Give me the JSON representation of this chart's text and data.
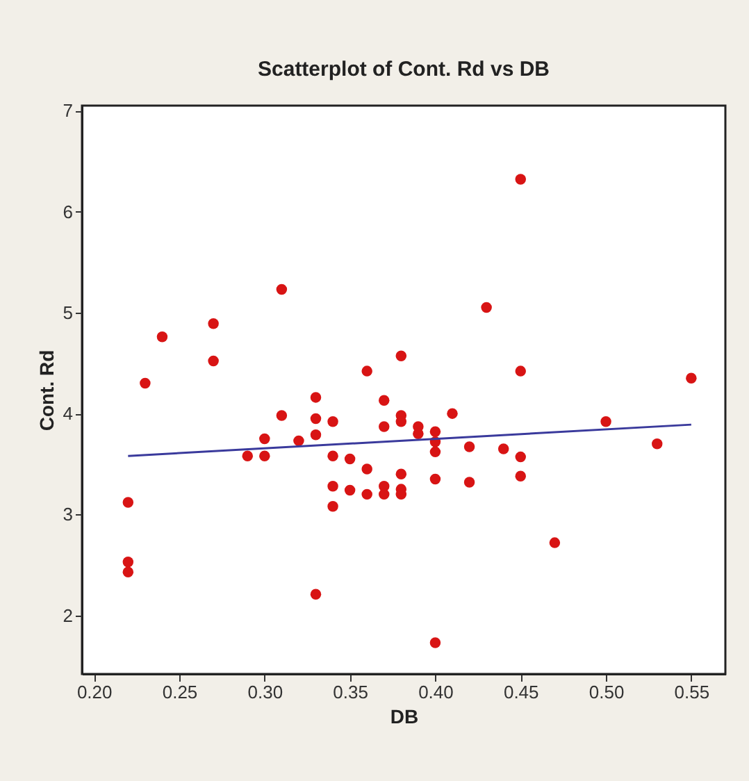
{
  "chart_data": {
    "type": "scatter",
    "title": "Scatterplot of Cont. Rd vs DB",
    "xlabel": "DB",
    "ylabel": "Cont. Rd",
    "marker": "circle",
    "grid": false,
    "xlim": [
      0.193,
      0.57
    ],
    "ylim": [
      1.42,
      7.05
    ],
    "xticks": [
      {
        "value": 0.2,
        "label": "0.20"
      },
      {
        "value": 0.25,
        "label": "0.25"
      },
      {
        "value": 0.3,
        "label": "0.30"
      },
      {
        "value": 0.35,
        "label": "0.35"
      },
      {
        "value": 0.4,
        "label": "0.40"
      },
      {
        "value": 0.45,
        "label": "0.45"
      },
      {
        "value": 0.5,
        "label": "0.50"
      },
      {
        "value": 0.55,
        "label": "0.55"
      }
    ],
    "yticks": [
      2,
      3,
      4,
      5,
      6,
      7
    ],
    "series": [
      {
        "color": "#d81414",
        "x": [
          0.22,
          0.22,
          0.22,
          0.23,
          0.24,
          0.27,
          0.27,
          0.29,
          0.3,
          0.3,
          0.31,
          0.31,
          0.32,
          0.33,
          0.33,
          0.33,
          0.33,
          0.34,
          0.34,
          0.34,
          0.34,
          0.35,
          0.35,
          0.36,
          0.36,
          0.36,
          0.37,
          0.37,
          0.37,
          0.37,
          0.38,
          0.38,
          0.38,
          0.38,
          0.38,
          0.38,
          0.39,
          0.39,
          0.4,
          0.4,
          0.4,
          0.4,
          0.4,
          0.41,
          0.42,
          0.42,
          0.43,
          0.44,
          0.45,
          0.45,
          0.45,
          0.45,
          0.47,
          0.5,
          0.53,
          0.55
        ],
        "values": [
          3.12,
          2.53,
          2.43,
          4.3,
          4.76,
          4.89,
          4.52,
          3.58,
          3.75,
          3.58,
          5.23,
          3.98,
          3.73,
          4.16,
          3.95,
          3.79,
          2.21,
          3.92,
          3.58,
          3.28,
          3.08,
          3.55,
          3.24,
          4.42,
          3.45,
          3.2,
          4.13,
          3.87,
          3.28,
          3.2,
          4.57,
          3.98,
          3.92,
          3.4,
          3.25,
          3.2,
          3.87,
          3.8,
          3.82,
          3.72,
          3.62,
          3.35,
          1.73,
          4.0,
          3.67,
          3.32,
          5.05,
          3.65,
          6.32,
          4.42,
          3.57,
          3.38,
          2.72,
          3.92,
          3.7,
          4.35
        ]
      },
      {
        "type": "line",
        "marker": "none",
        "color": "#3a3a9c",
        "x": [
          0.22,
          0.55
        ],
        "values": [
          3.58,
          3.89
        ]
      }
    ]
  }
}
